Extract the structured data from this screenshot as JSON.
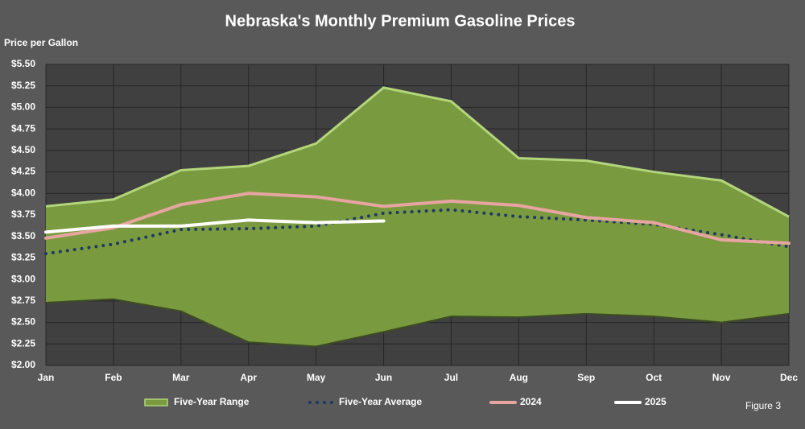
{
  "chart_data": {
    "type": "line",
    "title": "Nebraska's Monthly Premium Gasoline Prices",
    "y_axis_label": "Price per Gallon",
    "annotation": "Figure 3",
    "categories": [
      "Jan",
      "Feb",
      "Mar",
      "Apr",
      "May",
      "Jun",
      "Jul",
      "Aug",
      "Sep",
      "Oct",
      "Nov",
      "Dec"
    ],
    "series": [
      {
        "name": "Five-Year Range",
        "color": "#7a9a3f",
        "kind": "range",
        "upper": [
          3.85,
          3.93,
          4.27,
          4.32,
          4.58,
          5.23,
          5.07,
          4.41,
          4.38,
          4.25,
          4.15,
          3.73
        ],
        "lower": [
          2.73,
          2.77,
          2.63,
          2.27,
          2.22,
          2.39,
          2.57,
          2.56,
          2.6,
          2.57,
          2.5,
          2.6
        ]
      },
      {
        "name": "Five-Year Average",
        "color": "#1f3864",
        "style": "dotted",
        "values": [
          3.3,
          3.41,
          3.58,
          3.59,
          3.62,
          3.77,
          3.81,
          3.73,
          3.69,
          3.64,
          3.52,
          3.38
        ]
      },
      {
        "name": "2024",
        "color": "#e6a5a0",
        "style": "solid",
        "values": [
          3.48,
          3.6,
          3.87,
          4.0,
          3.96,
          3.85,
          3.91,
          3.86,
          3.72,
          3.66,
          3.46,
          3.42
        ]
      },
      {
        "name": "2025",
        "color": "#ffffff",
        "style": "solid",
        "values": [
          3.55,
          3.62,
          3.62,
          3.69,
          3.66,
          3.68,
          null,
          null,
          null,
          null,
          null,
          null
        ]
      }
    ],
    "ylim": [
      2.0,
      5.5
    ],
    "yticks": [
      {
        "value": 2.0,
        "label": "$2.00"
      },
      {
        "value": 2.25,
        "label": "$2.25"
      },
      {
        "value": 2.5,
        "label": "$2.50"
      },
      {
        "value": 2.75,
        "label": "$2.75"
      },
      {
        "value": 3.0,
        "label": "$3.00"
      },
      {
        "value": 3.25,
        "label": "$3.25"
      },
      {
        "value": 3.5,
        "label": "$3.50"
      },
      {
        "value": 3.75,
        "label": "$3.75"
      },
      {
        "value": 4.0,
        "label": "$4.00"
      },
      {
        "value": 4.25,
        "label": "$4.25"
      },
      {
        "value": 4.5,
        "label": "$4.50"
      },
      {
        "value": 4.75,
        "label": "$4.75"
      },
      {
        "value": 5.0,
        "label": "$5.00"
      },
      {
        "value": 5.25,
        "label": "$5.25"
      },
      {
        "value": 5.5,
        "label": "$5.50"
      }
    ],
    "grid": true,
    "legend": "bottom"
  }
}
